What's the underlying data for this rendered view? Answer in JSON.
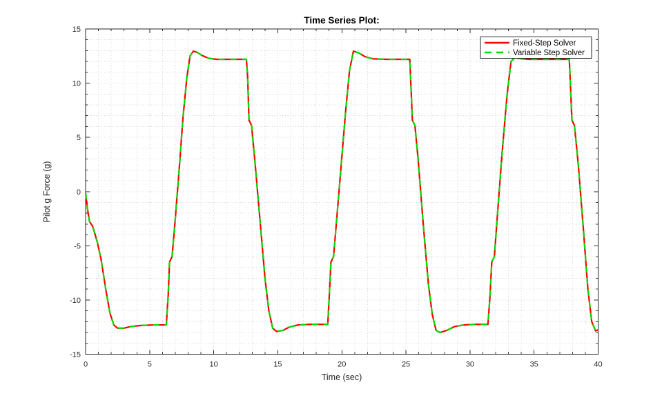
{
  "figure": {
    "background": "#ffffff"
  },
  "chart_data": {
    "type": "line",
    "title": "Time Series Plot:",
    "xlabel": "Time (sec)",
    "ylabel": "Pilot g Force (g)",
    "xlim": [
      0,
      40
    ],
    "ylim": [
      -15,
      15
    ],
    "xticks": [
      0,
      5,
      10,
      15,
      20,
      25,
      30,
      35,
      40
    ],
    "yticks": [
      -15,
      -10,
      -5,
      0,
      5,
      10,
      15
    ],
    "minor_step_x": 1,
    "minor_step_y": 1,
    "grid": "dotted-minor-on",
    "grid_color": "#d9d9d9",
    "axis_color": "#262626",
    "legend": {
      "position": "top-right",
      "background": "#ffffff",
      "border_color": "#262626",
      "entries": [
        {
          "label": "Fixed-Step Solver",
          "color": "#ff0000",
          "style": "solid"
        },
        {
          "label": "Variable Step Solver",
          "color": "#00dd00",
          "style": "dashed"
        }
      ]
    },
    "series": [
      {
        "name": "Fixed-Step Solver",
        "color": "#ff0000",
        "style": "solid",
        "width": 2.2,
        "points": "shared"
      },
      {
        "name": "Variable Step Solver",
        "color": "#00dd00",
        "style": "dashed",
        "width": 2.2,
        "points": "shared"
      }
    ],
    "points": [
      [
        0,
        -0.15
      ],
      [
        0.15,
        -1.6
      ],
      [
        0.3,
        -2.75
      ],
      [
        0.55,
        -3.2
      ],
      [
        0.9,
        -4.6
      ],
      [
        1.2,
        -6.2
      ],
      [
        1.6,
        -9.2
      ],
      [
        1.9,
        -11.2
      ],
      [
        2.2,
        -12.3
      ],
      [
        2.5,
        -12.6
      ],
      [
        3.0,
        -12.6
      ],
      [
        3.5,
        -12.45
      ],
      [
        4.3,
        -12.35
      ],
      [
        5.3,
        -12.3
      ],
      [
        6.3,
        -12.3
      ],
      [
        6.45,
        -9.5
      ],
      [
        6.55,
        -6.5
      ],
      [
        6.75,
        -6.0
      ],
      [
        7.0,
        -2.5
      ],
      [
        7.3,
        2.0
      ],
      [
        7.6,
        6.8
      ],
      [
        7.9,
        10.5
      ],
      [
        8.15,
        12.5
      ],
      [
        8.4,
        12.95
      ],
      [
        8.7,
        12.85
      ],
      [
        9.1,
        12.55
      ],
      [
        9.6,
        12.3
      ],
      [
        10.2,
        12.2
      ],
      [
        11.5,
        12.2
      ],
      [
        12.55,
        12.2
      ],
      [
        12.65,
        10.5
      ],
      [
        12.75,
        6.6
      ],
      [
        12.95,
        6.1
      ],
      [
        13.2,
        3.0
      ],
      [
        13.6,
        -2.5
      ],
      [
        14.0,
        -8.0
      ],
      [
        14.3,
        -11.0
      ],
      [
        14.6,
        -12.6
      ],
      [
        14.9,
        -12.9
      ],
      [
        15.4,
        -12.8
      ],
      [
        15.9,
        -12.5
      ],
      [
        16.6,
        -12.3
      ],
      [
        17.5,
        -12.25
      ],
      [
        18.9,
        -12.25
      ],
      [
        19.0,
        -10.0
      ],
      [
        19.15,
        -6.5
      ],
      [
        19.35,
        -6.0
      ],
      [
        19.6,
        -2.5
      ],
      [
        19.95,
        2.5
      ],
      [
        20.3,
        7.5
      ],
      [
        20.6,
        11.2
      ],
      [
        20.9,
        12.95
      ],
      [
        21.3,
        12.8
      ],
      [
        21.8,
        12.45
      ],
      [
        22.4,
        12.25
      ],
      [
        23.5,
        12.2
      ],
      [
        25.3,
        12.2
      ],
      [
        25.4,
        9.5
      ],
      [
        25.5,
        6.6
      ],
      [
        25.7,
        6.1
      ],
      [
        25.95,
        3.0
      ],
      [
        26.35,
        -3.0
      ],
      [
        26.75,
        -8.5
      ],
      [
        27.05,
        -11.3
      ],
      [
        27.35,
        -12.8
      ],
      [
        27.65,
        -13.0
      ],
      [
        28.2,
        -12.8
      ],
      [
        28.8,
        -12.45
      ],
      [
        29.5,
        -12.3
      ],
      [
        30.4,
        -12.25
      ],
      [
        31.4,
        -12.25
      ],
      [
        31.55,
        -9.8
      ],
      [
        31.7,
        -6.5
      ],
      [
        31.9,
        -6.0
      ],
      [
        32.15,
        -2.0
      ],
      [
        32.5,
        3.5
      ],
      [
        32.9,
        9.0
      ],
      [
        33.2,
        12.0
      ],
      [
        33.5,
        12.35
      ],
      [
        34.0,
        12.25
      ],
      [
        34.6,
        12.2
      ],
      [
        36.0,
        12.2
      ],
      [
        37.75,
        12.2
      ],
      [
        37.85,
        9.5
      ],
      [
        37.95,
        6.6
      ],
      [
        38.15,
        6.1
      ],
      [
        38.45,
        2.5
      ],
      [
        38.85,
        -3.5
      ],
      [
        39.2,
        -9.0
      ],
      [
        39.5,
        -12.0
      ],
      [
        39.8,
        -12.85
      ],
      [
        40,
        -12.75
      ]
    ]
  }
}
